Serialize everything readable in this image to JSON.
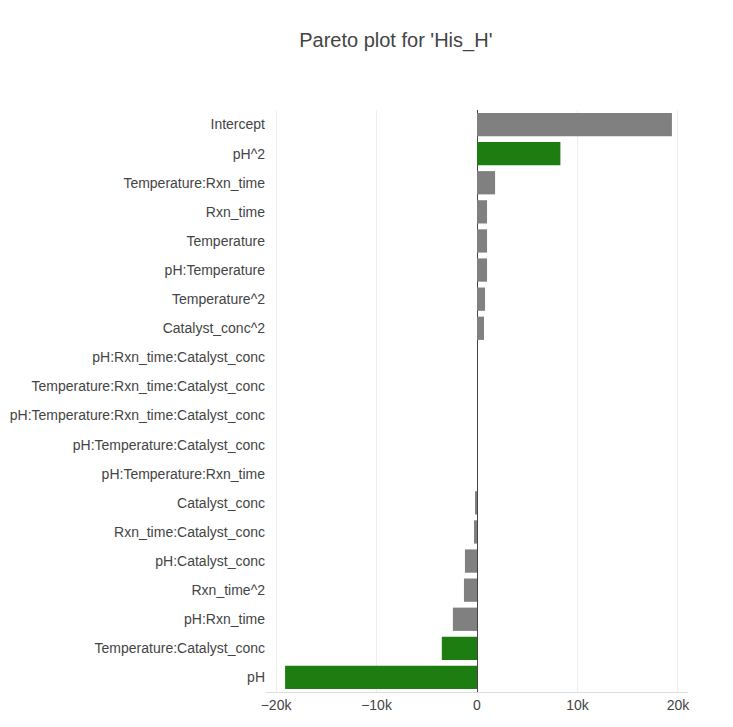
{
  "chart_data": {
    "type": "bar",
    "orientation": "horizontal",
    "title": "Pareto plot for 'His_H'",
    "categories": [
      "Intercept",
      "pH^2",
      "Temperature:Rxn_time",
      "Rxn_time",
      "Temperature",
      "pH:Temperature",
      "Temperature^2",
      "Catalyst_conc^2",
      "pH:Rxn_time:Catalyst_conc",
      "Temperature:Rxn_time:Catalyst_conc",
      "pH:Temperature:Rxn_time:Catalyst_conc",
      "pH:Temperature:Catalyst_conc",
      "pH:Temperature:Rxn_time",
      "Catalyst_conc",
      "Rxn_time:Catalyst_conc",
      "pH:Catalyst_conc",
      "Rxn_time^2",
      "pH:Rxn_time",
      "Temperature:Catalyst_conc",
      "pH"
    ],
    "values": [
      19400,
      8300,
      1800,
      1000,
      1000,
      1000,
      800,
      700,
      0,
      0,
      0,
      0,
      0,
      -200,
      -300,
      -1200,
      -1300,
      -2400,
      -3500,
      -19100
    ],
    "colors": [
      "#808080",
      "#1e7d10",
      "#808080",
      "#808080",
      "#808080",
      "#808080",
      "#808080",
      "#808080",
      "#808080",
      "#808080",
      "#808080",
      "#808080",
      "#808080",
      "#808080",
      "#808080",
      "#808080",
      "#808080",
      "#808080",
      "#1e7d10",
      "#1e7d10"
    ],
    "xlim": [
      -21000,
      21000
    ],
    "xticks": [
      {
        "value": -20000,
        "label": "−20k"
      },
      {
        "value": -10000,
        "label": "−10k"
      },
      0,
      {
        "value": 10000,
        "label": "10k"
      },
      {
        "value": 20000,
        "label": "20k"
      }
    ],
    "grid": true
  }
}
